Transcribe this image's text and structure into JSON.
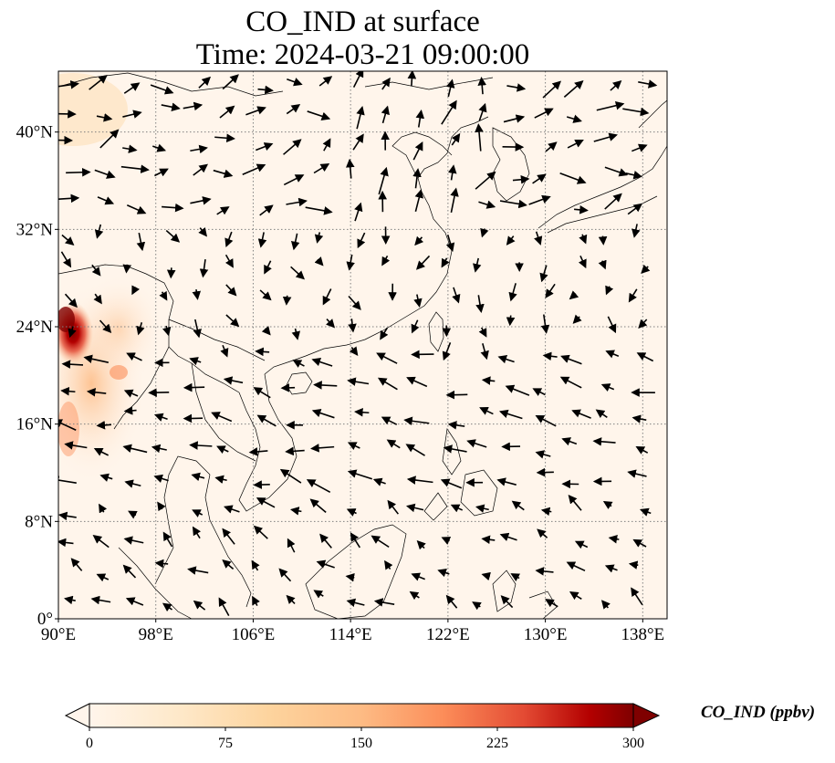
{
  "title": {
    "line1": "CO_IND at surface",
    "line2": "Time: 2024-03-21 09:00:00"
  },
  "map": {
    "lon_range": [
      90,
      140
    ],
    "lat_range": [
      0,
      45
    ],
    "lon_ticks": [
      {
        "value": 90,
        "label": "90°E"
      },
      {
        "value": 98,
        "label": "98°E"
      },
      {
        "value": 106,
        "label": "106°E"
      },
      {
        "value": 114,
        "label": "114°E"
      },
      {
        "value": 122,
        "label": "122°E"
      },
      {
        "value": 130,
        "label": "130°E"
      },
      {
        "value": 138,
        "label": "138°E"
      }
    ],
    "lat_ticks": [
      {
        "value": 0,
        "label": "0°"
      },
      {
        "value": 8,
        "label": "8°N"
      },
      {
        "value": 16,
        "label": "16°N"
      },
      {
        "value": 24,
        "label": "24°N"
      },
      {
        "value": 32,
        "label": "32°N"
      },
      {
        "value": 40,
        "label": "40°N"
      }
    ],
    "gridlines": true,
    "background_color": "#fff5eb",
    "colormap": "OrRd"
  },
  "colorbar": {
    "label": "CO_IND (ppbv)",
    "min": 0,
    "max": 300,
    "ticks": [
      {
        "value": 0,
        "label": "0"
      },
      {
        "value": 75,
        "label": "75"
      },
      {
        "value": 150,
        "label": "150"
      },
      {
        "value": 225,
        "label": "225"
      },
      {
        "value": 300,
        "label": "300"
      }
    ],
    "extend": "both",
    "colors": [
      "#fff5eb",
      "#fdd49e",
      "#fdbb84",
      "#fc8d59",
      "#e34a33",
      "#b30000",
      "#7f0000"
    ]
  }
}
